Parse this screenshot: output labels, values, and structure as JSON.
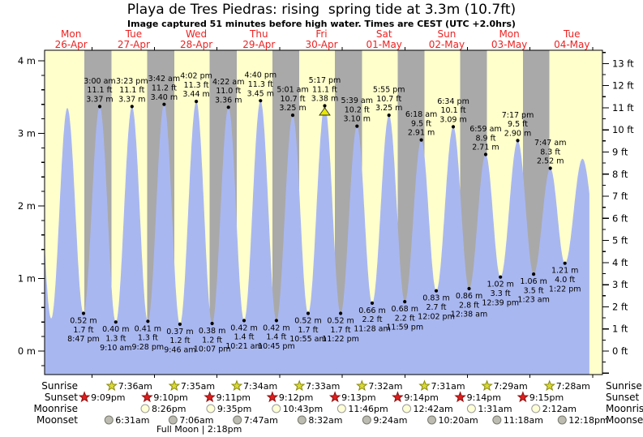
{
  "title": "Playa de Tres Piedras: rising  spring tide at 3.3m (10.7ft)",
  "subtitle": "Image captured 51 minutes before high water. Times are CEST (UTC +2.0hrs)",
  "days": [
    {
      "name": "Mon",
      "date": "26-Apr"
    },
    {
      "name": "Tue",
      "date": "27-Apr"
    },
    {
      "name": "Wed",
      "date": "28-Apr"
    },
    {
      "name": "Thu",
      "date": "29-Apr"
    },
    {
      "name": "Fri",
      "date": "30-Apr"
    },
    {
      "name": "Sat",
      "date": "01-May"
    },
    {
      "name": "Sun",
      "date": "02-May"
    },
    {
      "name": "Mon",
      "date": "03-May"
    },
    {
      "name": "Tue",
      "date": "04-May"
    }
  ],
  "y_axis_left": {
    "unit": "m",
    "major_ticks": [
      0,
      1,
      2,
      3,
      4
    ]
  },
  "y_axis_right": {
    "unit": "ft",
    "major_ticks": [
      0,
      1,
      2,
      3,
      4,
      5,
      6,
      7,
      8,
      9,
      10,
      11,
      12,
      13
    ]
  },
  "chart_data": {
    "type": "area",
    "title": "Playa de Tres Piedras tide height",
    "x_unit": "local time (CEST)",
    "y_unit_primary": "m",
    "y_unit_secondary": "ft",
    "ylim_m": [
      -0.32,
      4.15
    ],
    "grid": false,
    "tide_events": [
      {
        "day": 0,
        "type": "low",
        "time": "8:47 pm",
        "height_m": "0.52",
        "height_ft": "1.7"
      },
      {
        "day": 1,
        "type": "high",
        "time": "3:00 am",
        "height_m": "3.37",
        "height_ft": "11.1"
      },
      {
        "day": 1,
        "type": "low",
        "time": "9:10 am",
        "height_m": "0.40",
        "height_ft": "1.3"
      },
      {
        "day": 1,
        "type": "high",
        "time": "3:23 pm",
        "height_m": "3.37",
        "height_ft": "11.1"
      },
      {
        "day": 1,
        "type": "low",
        "time": "9:28 pm",
        "height_m": "0.41",
        "height_ft": "1.3"
      },
      {
        "day": 2,
        "type": "high",
        "time": "3:42 am",
        "height_m": "3.40",
        "height_ft": "11.2"
      },
      {
        "day": 2,
        "type": "low",
        "time": "9:46 am",
        "height_m": "0.37",
        "height_ft": "1.2"
      },
      {
        "day": 2,
        "type": "high",
        "time": "4:02 pm",
        "height_m": "3.44",
        "height_ft": "11.3"
      },
      {
        "day": 2,
        "type": "low",
        "time": "10:07 pm",
        "height_m": "0.38",
        "height_ft": "1.2"
      },
      {
        "day": 3,
        "type": "high",
        "time": "4:22 am",
        "height_m": "3.36",
        "height_ft": "11.0"
      },
      {
        "day": 3,
        "type": "low",
        "time": "10:21 am",
        "height_m": "0.42",
        "height_ft": "1.4"
      },
      {
        "day": 3,
        "type": "high",
        "time": "4:40 pm",
        "height_m": "3.45",
        "height_ft": "11.3"
      },
      {
        "day": 3,
        "type": "low",
        "time": "10:45 pm",
        "height_m": "0.42",
        "height_ft": "1.4"
      },
      {
        "day": 4,
        "type": "high",
        "time": "5:01 am",
        "height_m": "3.25",
        "height_ft": "10.7"
      },
      {
        "day": 4,
        "type": "low",
        "time": "10:55 am",
        "height_m": "0.52",
        "height_ft": "1.7"
      },
      {
        "day": 4,
        "type": "high",
        "time": "5:17 pm",
        "height_m": "3.38",
        "height_ft": "11.1",
        "current": true
      },
      {
        "day": 4,
        "type": "low",
        "time": "11:22 pm",
        "height_m": "0.52",
        "height_ft": "1.7"
      },
      {
        "day": 5,
        "type": "high",
        "time": "5:39 am",
        "height_m": "3.10",
        "height_ft": "10.2"
      },
      {
        "day": 5,
        "type": "low",
        "time": "11:28 am",
        "height_m": "0.66",
        "height_ft": "2.2"
      },
      {
        "day": 5,
        "type": "high",
        "time": "5:55 pm",
        "height_m": "3.25",
        "height_ft": "10.7"
      },
      {
        "day": 5,
        "type": "low",
        "time": "11:59 pm",
        "height_m": "0.68",
        "height_ft": "2.2"
      },
      {
        "day": 6,
        "type": "high",
        "time": "6:18 am",
        "height_m": "2.91",
        "height_ft": "9.5"
      },
      {
        "day": 6,
        "type": "low",
        "time": "12:02 pm",
        "height_m": "0.83",
        "height_ft": "2.7"
      },
      {
        "day": 6,
        "type": "high",
        "time": "6:34 pm",
        "height_m": "3.09",
        "height_ft": "10.1"
      },
      {
        "day": 7,
        "type": "low",
        "time": "12:38 am",
        "height_m": "0.86",
        "height_ft": "2.8"
      },
      {
        "day": 7,
        "type": "high",
        "time": "6:59 am",
        "height_m": "2.71",
        "height_ft": "8.9"
      },
      {
        "day": 7,
        "type": "low",
        "time": "12:39 pm",
        "height_m": "1.02",
        "height_ft": "3.3"
      },
      {
        "day": 7,
        "type": "high",
        "time": "7:17 pm",
        "height_m": "2.90",
        "height_ft": "9.5"
      },
      {
        "day": 8,
        "type": "low",
        "time": "1:23 am",
        "height_m": "1.06",
        "height_ft": "3.5"
      },
      {
        "day": 8,
        "type": "high",
        "time": "7:47 am",
        "height_m": "2.52",
        "height_ft": "8.3"
      },
      {
        "day": 8,
        "type": "low",
        "time": "1:22 pm",
        "height_m": "1.21",
        "height_ft": "4.0"
      }
    ],
    "curve_boundary_events": [
      {
        "day": 0,
        "hour": 2.2,
        "height_m": 3.3
      },
      {
        "day": 0,
        "hour": 8.4,
        "height_m": 0.45
      },
      {
        "day": 0,
        "hour": 14.6,
        "height_m": 3.35
      },
      {
        "day": 8,
        "hour": 20.1,
        "height_m": 2.65
      },
      {
        "day": 9,
        "hour": 2.6,
        "height_m": 1.3
      }
    ]
  },
  "astro": {
    "rows": [
      {
        "label": "Sunrise",
        "icon": "sunrise-star",
        "entries": [
          {
            "day": 1,
            "time": "7:36am"
          },
          {
            "day": 2,
            "time": "7:35am"
          },
          {
            "day": 3,
            "time": "7:34am"
          },
          {
            "day": 4,
            "time": "7:33am"
          },
          {
            "day": 5,
            "time": "7:32am"
          },
          {
            "day": 6,
            "time": "7:31am"
          },
          {
            "day": 7,
            "time": "7:29am"
          },
          {
            "day": 8,
            "time": "7:28am"
          }
        ]
      },
      {
        "label": "Sunset",
        "icon": "sunset-star",
        "entries": [
          {
            "day": 0,
            "time": "9:09pm"
          },
          {
            "day": 1,
            "time": "9:10pm"
          },
          {
            "day": 2,
            "time": "9:11pm"
          },
          {
            "day": 3,
            "time": "9:12pm"
          },
          {
            "day": 4,
            "time": "9:13pm"
          },
          {
            "day": 5,
            "time": "9:14pm"
          },
          {
            "day": 6,
            "time": "9:14pm"
          },
          {
            "day": 7,
            "time": "9:15pm"
          }
        ]
      },
      {
        "label": "Moonrise",
        "icon": "moonrise-circle",
        "entries": [
          {
            "day": 1,
            "time": "8:26pm"
          },
          {
            "day": 2,
            "time": "9:35pm"
          },
          {
            "day": 3,
            "time": "10:43pm"
          },
          {
            "day": 4,
            "time": "11:46pm"
          },
          {
            "day": 6,
            "time": "12:42am"
          },
          {
            "day": 7,
            "time": "1:31am"
          },
          {
            "day": 8,
            "time": "2:12am"
          }
        ]
      },
      {
        "label": "Moonset",
        "icon": "moonset-circle",
        "entries": [
          {
            "day": 1,
            "time": "6:31am"
          },
          {
            "day": 2,
            "time": "7:06am"
          },
          {
            "day": 3,
            "time": "7:47am"
          },
          {
            "day": 4,
            "time": "8:32am"
          },
          {
            "day": 5,
            "time": "9:24am"
          },
          {
            "day": 6,
            "time": "10:20am"
          },
          {
            "day": 7,
            "time": "11:18am"
          },
          {
            "day": 8,
            "time": "12:18pm"
          }
        ]
      }
    ],
    "footnote": {
      "label": "Full Moon",
      "separator": "|",
      "time": "2:18pm"
    }
  },
  "colors": {
    "day_band": "#ffffcc",
    "night_band": "#a9a9a9",
    "tide_fill": "#a9b7f0",
    "day_label": "#ee2222",
    "axis": "#000000",
    "annotation": "#000000",
    "current_marker": "#e8e800",
    "sunrise_star": "#d9d932",
    "sunrise_star_border": "#8a8a10",
    "sunset_star": "#dd2020",
    "sunset_star_border": "#8d1010",
    "moonrise_circle": "#ffffd6",
    "moonrise_circle_border": "#999999",
    "moonset_circle": "#bcbcb2",
    "moonset_circle_border": "#78786e"
  }
}
